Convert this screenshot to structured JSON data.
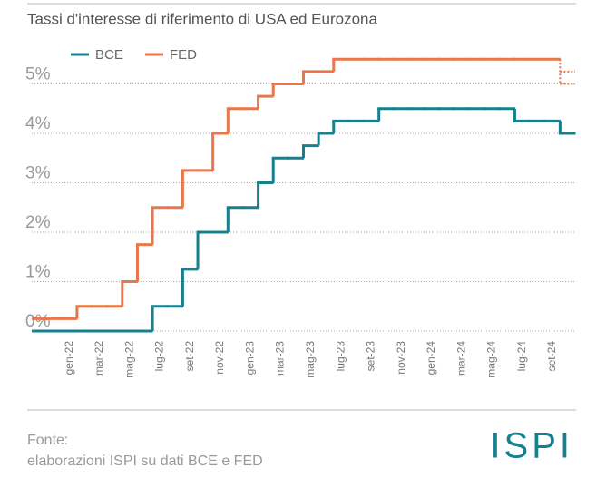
{
  "chart_data": {
    "type": "step",
    "title": "Tassi d'interesse di riferimento di USA ed Eurozona",
    "categories": [
      null,
      null,
      "gen-22",
      null,
      "mar-22",
      null,
      "mag-22",
      null,
      "lug-22",
      null,
      "set-22",
      null,
      "nov-22",
      null,
      "gen-23",
      null,
      "mar-23",
      null,
      "mag-23",
      null,
      "lug-23",
      null,
      "set-23",
      null,
      "nov-23",
      null,
      "gen-24",
      null,
      "mar-24",
      null,
      "mag-24",
      null,
      "lug-24",
      null,
      "set-24",
      null
    ],
    "series": [
      {
        "name": "BCE",
        "color": "#16808e",
        "values": [
          0,
          0,
          0,
          0,
          0,
          0,
          0,
          0,
          0.5,
          0.5,
          1.25,
          2,
          2,
          2.5,
          2.5,
          3,
          3.5,
          3.5,
          3.75,
          4,
          4.25,
          4.25,
          4.25,
          4.5,
          4.5,
          4.5,
          4.5,
          4.5,
          4.5,
          4.5,
          4.5,
          4.5,
          4.25,
          4.25,
          4.25,
          4
        ]
      },
      {
        "name": "FED",
        "color": "#e9774b",
        "values": [
          0.25,
          0.25,
          0.25,
          0.5,
          0.5,
          0.5,
          1,
          1.75,
          2.5,
          2.5,
          3.25,
          3.25,
          4,
          4.5,
          4.5,
          4.75,
          5,
          5,
          5.25,
          5.25,
          5.5,
          5.5,
          5.5,
          5.5,
          5.5,
          5.5,
          5.5,
          5.5,
          5.5,
          5.5,
          5.5,
          5.5,
          5.5,
          5.5,
          5.5,
          null
        ]
      }
    ],
    "fed_dotted": {
      "values": [
        5.25,
        5
      ]
    },
    "ylim": [
      0,
      5.9
    ],
    "yticks": [
      {
        "value": 0,
        "label": "0%"
      },
      {
        "value": 1,
        "label": "1%"
      },
      {
        "value": 2,
        "label": "2%"
      },
      {
        "value": 3,
        "label": "3%"
      },
      {
        "value": 4,
        "label": "4%"
      },
      {
        "value": 5,
        "label": "5%"
      }
    ],
    "grid": true,
    "source_label": "Fonte:",
    "source": "elaborazioni ISPI su dati BCE e FED",
    "logo": "ISPI"
  }
}
